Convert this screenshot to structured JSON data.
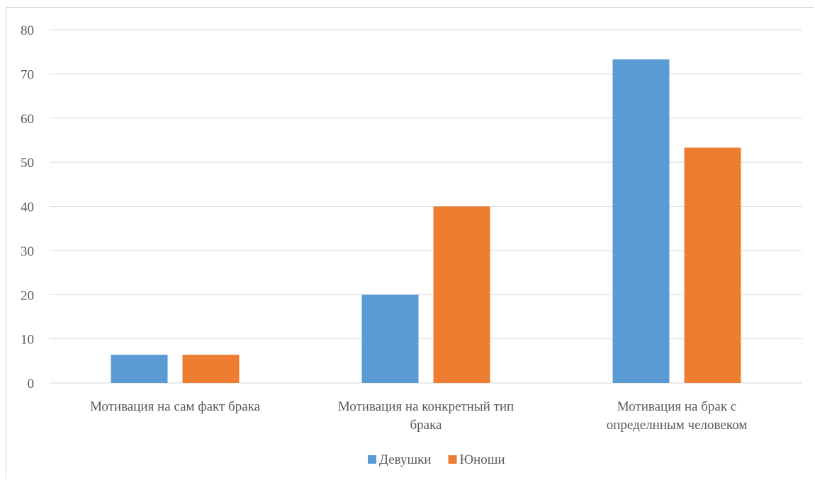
{
  "chart_data": {
    "type": "bar",
    "title": "",
    "xlabel": "",
    "ylabel": "",
    "ylim": [
      0,
      80
    ],
    "yticks": [
      0,
      10,
      20,
      30,
      40,
      50,
      60,
      70,
      80
    ],
    "categories": [
      [
        "Мотивация на сам факт брака"
      ],
      [
        "Мотивация на конкретный тип",
        "брака"
      ],
      [
        "Мотивация на брак с",
        "определнным человеком"
      ]
    ],
    "series": [
      {
        "name": "Девушки",
        "color": "#5b9bd5",
        "values": [
          6.4,
          20,
          73.3
        ]
      },
      {
        "name": "Юноши",
        "color": "#ed7d31",
        "values": [
          6.4,
          40,
          53.3
        ]
      }
    ],
    "grid": true,
    "legend": "bottom"
  }
}
